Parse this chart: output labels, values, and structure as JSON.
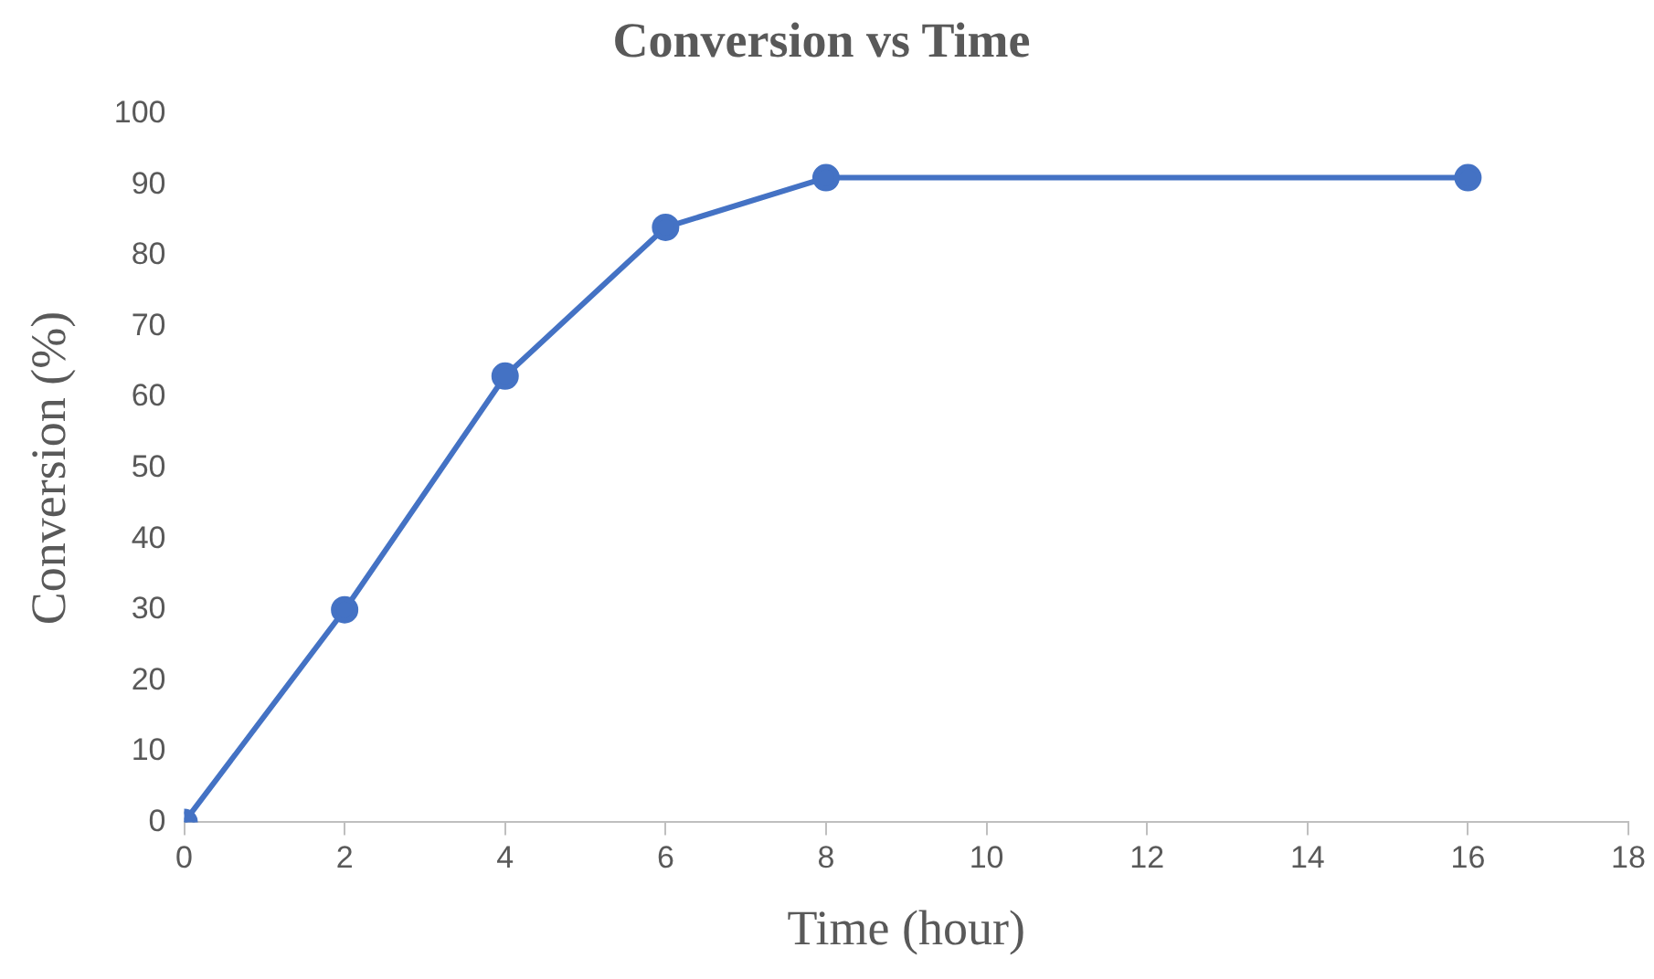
{
  "chart_data": {
    "type": "line",
    "title": "Conversion vs Time",
    "xlabel": "Time (hour)",
    "ylabel": "Conversion (%)",
    "x": [
      0,
      2,
      4,
      6,
      8,
      16
    ],
    "series": [
      {
        "color": "#4472c4",
        "values": [
          0,
          30,
          63,
          84,
          91,
          91
        ]
      }
    ],
    "xlim": [
      0,
      18
    ],
    "xticks": [
      0,
      2,
      4,
      6,
      8,
      10,
      12,
      14,
      16,
      18
    ],
    "ylim": [
      0,
      100
    ],
    "yticks": [
      0,
      10,
      20,
      30,
      40,
      50,
      60,
      70,
      80,
      90,
      100
    ],
    "grid": false,
    "legend": false,
    "marker": "circle",
    "line_style": "solid"
  }
}
